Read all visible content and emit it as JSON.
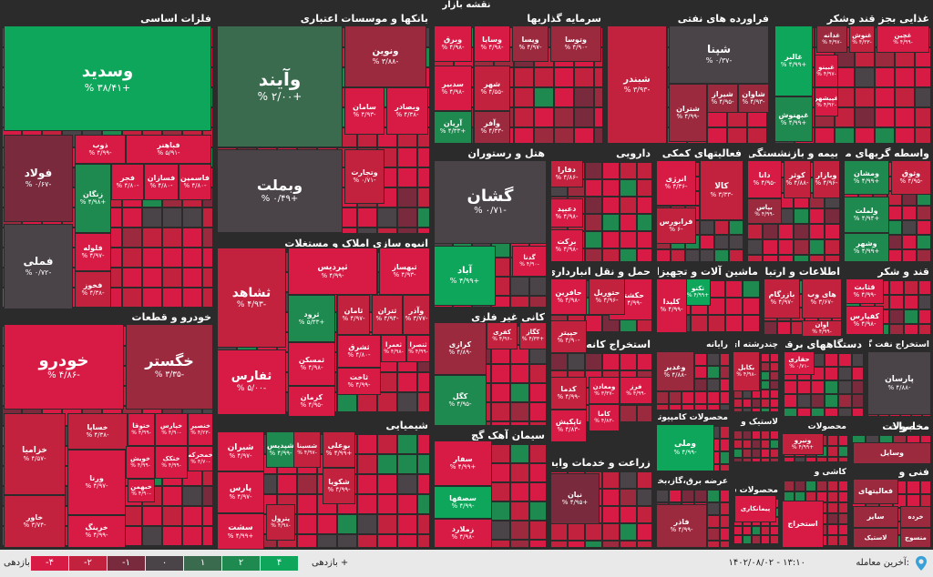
{
  "map_title": "نقشه بازار",
  "colors": {
    "c4": "#d81b45",
    "c3": "#c3223f",
    "c2": "#9c2a3f",
    "c1": "#7a2a3d",
    "c0": "#4a4348",
    "g1": "#3b6b4f",
    "g2": "#1e8a4f",
    "g4": "#0ea65a"
  },
  "sectors": [
    {
      "id": "s1",
      "title": "فلزات اساسی"
    },
    {
      "id": "s2",
      "title": "بانکها و موسسات اعتباری"
    },
    {
      "id": "s3",
      "title": "سرمایه گذاریها"
    },
    {
      "id": "s4",
      "title": "فراورده های نفتی"
    },
    {
      "id": "s5",
      "title": "غذایی بجز قند وشکر"
    },
    {
      "id": "s6",
      "title": "خودرو و قطعات"
    },
    {
      "id": "s7",
      "title": "انبوه سازی املاک و مستغلات"
    },
    {
      "id": "s8",
      "title": "هتل و رستوران"
    },
    {
      "id": "s9",
      "title": "دارویی"
    },
    {
      "id": "s10",
      "title": "فعالیتهای کمکی به نهاد"
    },
    {
      "id": "s11",
      "title": "بیمه و بازنشستگی"
    },
    {
      "id": "s12",
      "title": "واسطه گریهای مالی و"
    },
    {
      "id": "s13",
      "title": "حمل و نقل انبارداری و"
    },
    {
      "id": "s14",
      "title": "ماشین آلات و تجهیزات"
    },
    {
      "id": "s15",
      "title": "اطلاعات و ارتباطات"
    },
    {
      "id": "s16",
      "title": "قند و شکر"
    },
    {
      "id": "s17",
      "title": "کانی غیر فلزی"
    },
    {
      "id": "s18",
      "title": "استخراج کانه های فلزی"
    },
    {
      "id": "s19",
      "title": "رایانه"
    },
    {
      "id": "s20",
      "title": "چندرشته ای صنعتی"
    },
    {
      "id": "s21",
      "title": "دستگاههای برقی"
    },
    {
      "id": "s22",
      "title": "استخراج نفت گاز"
    },
    {
      "id": "s23",
      "title": "شیمیایی"
    },
    {
      "id": "s24",
      "title": "سیمان آهک گچ"
    },
    {
      "id": "s25",
      "title": "زراعت و خدمات وابسته"
    },
    {
      "id": "s26",
      "title": "محصولات کامپیوتری"
    },
    {
      "id": "s27",
      "title": "لاستیک و"
    },
    {
      "id": "s28",
      "title": "محصولات"
    },
    {
      "id": "s29",
      "title": "مخابرات"
    },
    {
      "id": "s30",
      "title": "محصولات"
    },
    {
      "id": "s31",
      "title": "عرضه برق،گاز،بخار و"
    },
    {
      "id": "s32",
      "title": "محصولات شیمیایی"
    },
    {
      "id": "s33",
      "title": "کاشی و"
    },
    {
      "id": "s34",
      "title": "فنی و"
    }
  ],
  "tiles": [
    {
      "name": "وسدید",
      "change": "+۳۸/۴۱ %"
    },
    {
      "name": "فولاد",
      "change": "-۰/۶۷ %"
    },
    {
      "name": "فملی",
      "change": "-۰/۷۲ %"
    },
    {
      "name": "ذوب",
      "change": "-۴/۹۹ %"
    },
    {
      "name": "فباهنر",
      "change": "-۵/۹۱ %"
    },
    {
      "name": "زنگان",
      "change": "+۴/۹۸ %"
    },
    {
      "name": "فجر",
      "change": "-۴/۸۰ %"
    },
    {
      "name": "فسازان",
      "change": "-۴/۸۰ %"
    },
    {
      "name": "فاسمین",
      "change": "-۴/۸۰ %"
    },
    {
      "name": "فلوله",
      "change": "-۴/۹۷ %"
    },
    {
      "name": "فخوز",
      "change": "-۴/۳۸ %"
    },
    {
      "name": "وآیند",
      "change": "+۲/۰۰ %"
    },
    {
      "name": "وبملت",
      "change": "+۰/۴۹ %"
    },
    {
      "name": "ونوین",
      "change": "-۳/۸۸ %"
    },
    {
      "name": "سامان",
      "change": "-۴/۹۳ %"
    },
    {
      "name": "وبصادر",
      "change": "-۴/۳۸ %"
    },
    {
      "name": "وتجارت",
      "change": "-۰/۷۱ %"
    },
    {
      "name": "وبرق",
      "change": "-۴/۹۸ %"
    },
    {
      "name": "وسایا",
      "change": "-۴/۹۸ %"
    },
    {
      "name": "ویسا",
      "change": "-۴/۹۷ %"
    },
    {
      "name": "وتوسا",
      "change": "-۴/۹۰ %"
    },
    {
      "name": "سدبیر",
      "change": "-۴/۹۸ %"
    },
    {
      "name": "شهر",
      "change": "-۴/۵۵ %"
    },
    {
      "name": "آریان",
      "change": "+۴/۳۳ %"
    },
    {
      "name": "وآفر",
      "change": "-۴/۳۳ %"
    },
    {
      "name": "شبندر",
      "change": "-۳/۹۳ %"
    },
    {
      "name": "شپنا",
      "change": "-۰/۳۷ %"
    },
    {
      "name": "شتران",
      "change": "-۴/۹۹ %"
    },
    {
      "name": "شیراز",
      "change": "-۴/۹۵ %"
    },
    {
      "name": "شاوان",
      "change": "-۴/۹۳ %"
    },
    {
      "name": "غالبر",
      "change": "+۴/۹۹ %"
    },
    {
      "name": "غنوش",
      "change": "-۴/۳۳ %"
    },
    {
      "name": "غدانه",
      "change": "-۴/۹۷ %"
    },
    {
      "name": "غچین",
      "change": "-۴/۹۹ %"
    },
    {
      "name": "غبینو",
      "change": "-۴/۹۷ %"
    },
    {
      "name": "غبهنوش",
      "change": "+۴/۹۹ %"
    },
    {
      "name": "غپیشهر",
      "change": "-۴/۹۲ %"
    },
    {
      "name": "خودرو",
      "change": "-۴/۸۶ %"
    },
    {
      "name": "خگستر",
      "change": "-۳/۳۵ %"
    },
    {
      "name": "خزامیا",
      "change": "-۴/۵۷ %"
    },
    {
      "name": "خاور",
      "change": "-۳/۷۴ %"
    },
    {
      "name": "خساپا",
      "change": "-۴/۳۸ %"
    },
    {
      "name": "ختوقا",
      "change": "-۴/۹۹ %"
    },
    {
      "name": "خپارس",
      "change": "-۴/۹۰ %"
    },
    {
      "name": "خنصیر",
      "change": "-۴/۲۳ %"
    },
    {
      "name": "خمحرکه",
      "change": "-۴/۷۰ %"
    },
    {
      "name": "ختکک",
      "change": "-۴/۹۹ %"
    },
    {
      "name": "خویش",
      "change": "-۴/۹۹ %"
    },
    {
      "name": "خبهمن",
      "change": "-۴/۹۰ %"
    },
    {
      "name": "ورنا",
      "change": "-۴/۹۷ %"
    },
    {
      "name": "خرینگ",
      "change": "-۴/۹۹ %"
    },
    {
      "name": "ثشاهد",
      "change": "-۴/۹۳ %"
    },
    {
      "name": "ثفارس",
      "change": "-۵/۰۰ %"
    },
    {
      "name": "ثپردیس",
      "change": "-۴/۹۹ %"
    },
    {
      "name": "ثبهساز",
      "change": "-۴/۹۳ %"
    },
    {
      "name": "ثرود",
      "change": "+۵/۳۳ %"
    },
    {
      "name": "ثامان",
      "change": "-۴/۹۷ %"
    },
    {
      "name": "ثتران",
      "change": "-۴/۹۴ %"
    },
    {
      "name": "وآذر",
      "change": "-۳/۷۷ %"
    },
    {
      "name": "ثشرق",
      "change": "-۴/۸۰ %"
    },
    {
      "name": "ثعمرا",
      "change": "-۴/۹۸ %"
    },
    {
      "name": "ثنصرا",
      "change": "-۴/۹۹ %"
    },
    {
      "name": "ثمسکن",
      "change": "-۴/۹۸ %"
    },
    {
      "name": "ثاخت",
      "change": "-۴/۹۹ %"
    },
    {
      "name": "کرمان",
      "change": "-۴/۹۵ %"
    },
    {
      "name": "گشان",
      "change": "-۰/۷۱ %"
    },
    {
      "name": "آباد",
      "change": "+۴/۹۹ %"
    },
    {
      "name": "گدنا",
      "change": "-۴/۹۰ %"
    },
    {
      "name": "دفارا",
      "change": "-۴/۸۶ %"
    },
    {
      "name": "دعبید",
      "change": "-۴/۹۸ %"
    },
    {
      "name": "برکت",
      "change": "-۴/۹۸ %"
    },
    {
      "name": "انرژی",
      "change": "-۴/۳۶ %"
    },
    {
      "name": "کالا",
      "change": "-۳/۳۳ %"
    },
    {
      "name": "فرابورس",
      "change": "-۶ %"
    },
    {
      "name": "دانا",
      "change": "-۴/۹۵ %"
    },
    {
      "name": "کوثر",
      "change": "-۴/۸۸ %"
    },
    {
      "name": "بپاس",
      "change": "-۴/۹۹ %"
    },
    {
      "name": "وبازار",
      "change": "-۴/۹۶ %"
    },
    {
      "name": "ومشان",
      "change": "+۴/۹۹ %"
    },
    {
      "name": "وثوق",
      "change": "-۴/۹۵ %"
    },
    {
      "name": "ولملت",
      "change": "+۴/۹۴ %"
    },
    {
      "name": "وشهر",
      "change": "+۴/۹۹ %"
    },
    {
      "name": "حکشتی",
      "change": "-۴/۹۹ %"
    },
    {
      "name": "حافرین",
      "change": "-۴/۹۸ %"
    },
    {
      "name": "حتوریل",
      "change": "-۴/۹۶ %"
    },
    {
      "name": "حپیتر",
      "change": "-۴/۹۰ %"
    },
    {
      "name": "تکنو",
      "change": "+۴/۹۹ %"
    },
    {
      "name": "کلیدا",
      "change": "-۴/۹۹ %"
    },
    {
      "name": "بازرگام",
      "change": "-۴/۹۷ %"
    },
    {
      "name": "های وب",
      "change": "-۳/۶۷ %"
    },
    {
      "name": "اوان",
      "change": "-۴/۹۹ %"
    },
    {
      "name": "قثابت",
      "change": "-۴/۹۹ %"
    },
    {
      "name": "کفپارس",
      "change": "-۴/۹۸ %"
    },
    {
      "name": "کرازی",
      "change": "-۴/۸۹ %"
    },
    {
      "name": "کفری",
      "change": "-۴/۹۶ %"
    },
    {
      "name": "کگاز",
      "change": "+۴/۳۳ %"
    },
    {
      "name": "کگل",
      "change": "-۴/۹۵ %"
    },
    {
      "name": "فرز",
      "change": "-۴/۹۹ %"
    },
    {
      "name": "ومعادن",
      "change": "-۳/۳۷ %"
    },
    {
      "name": "کدما",
      "change": "-۴/۹۹ %"
    },
    {
      "name": "کاما",
      "change": "-۴/۸۳ %"
    },
    {
      "name": "تاپکیش",
      "change": "-۴/۸۳ %"
    },
    {
      "name": "وغدیر",
      "change": "-۴/۸۸ %"
    },
    {
      "name": "بکابل",
      "change": "-۴/۹۸ %"
    },
    {
      "name": "حفاری",
      "change": "-۰/۷۱ %"
    },
    {
      "name": "پارسان",
      "change": "-۴/۸۸ %"
    },
    {
      "name": "بوعلی",
      "change": "+۴/۹۹ %"
    },
    {
      "name": "شپدیس",
      "change": "-۴/۹۹ %"
    },
    {
      "name": "شیران",
      "change": "-۴/۹۷ %"
    },
    {
      "name": "شسینا",
      "change": "-۴/۹۷ %"
    },
    {
      "name": "پارس",
      "change": "-۴/۹۷ %"
    },
    {
      "name": "شکویا",
      "change": "-۴/۹۹ %"
    },
    {
      "name": "پترول",
      "change": "-۴/۹۸ %"
    },
    {
      "name": "سشت",
      "change": "+۴/۹۹ %"
    },
    {
      "name": "سفار",
      "change": "+۴/۹۹ %"
    },
    {
      "name": "سصفها",
      "change": "-۴/۹۹ %"
    },
    {
      "name": "زملارد",
      "change": "-۴/۹۸ %"
    },
    {
      "name": "نیان",
      "change": "+۴/۹۵ %"
    },
    {
      "name": "وملی",
      "change": "-۴/۹۹ %"
    },
    {
      "name": "ونیرو",
      "change": "+۴/۹۹ %"
    },
    {
      "name": "فاذر",
      "change": "-۴/۹۹ %"
    },
    {
      "name": "پیمانکاری",
      "change": ""
    },
    {
      "name": "استخراج",
      "change": ""
    },
    {
      "name": "وسایل",
      "change": ""
    },
    {
      "name": "فعالیتهای",
      "change": ""
    },
    {
      "name": "سایر",
      "change": ""
    },
    {
      "name": "خرده",
      "change": ""
    },
    {
      "name": "منسوج",
      "change": ""
    },
    {
      "name": "لاستیک",
      "change": ""
    }
  ],
  "bar": {
    "label_left": "بازدهی :",
    "label_right": "بازدهی +",
    "last_trade_label": "آخرین معامله:",
    "last_trade_value": "۱۴۰۲/۰۸/۰۲ - ۱۳:۱۰",
    "legend": [
      {
        "text": "-۴",
        "color": "#d81b45"
      },
      {
        "text": "-۲",
        "color": "#c3223f"
      },
      {
        "text": "-۱",
        "color": "#7a2a3d"
      },
      {
        "text": "۰",
        "color": "#4a4348"
      },
      {
        "text": "۱",
        "color": "#3b6b4f"
      },
      {
        "text": "۲",
        "color": "#1e8a4f"
      },
      {
        "text": "۴",
        "color": "#0ea65a"
      }
    ]
  }
}
